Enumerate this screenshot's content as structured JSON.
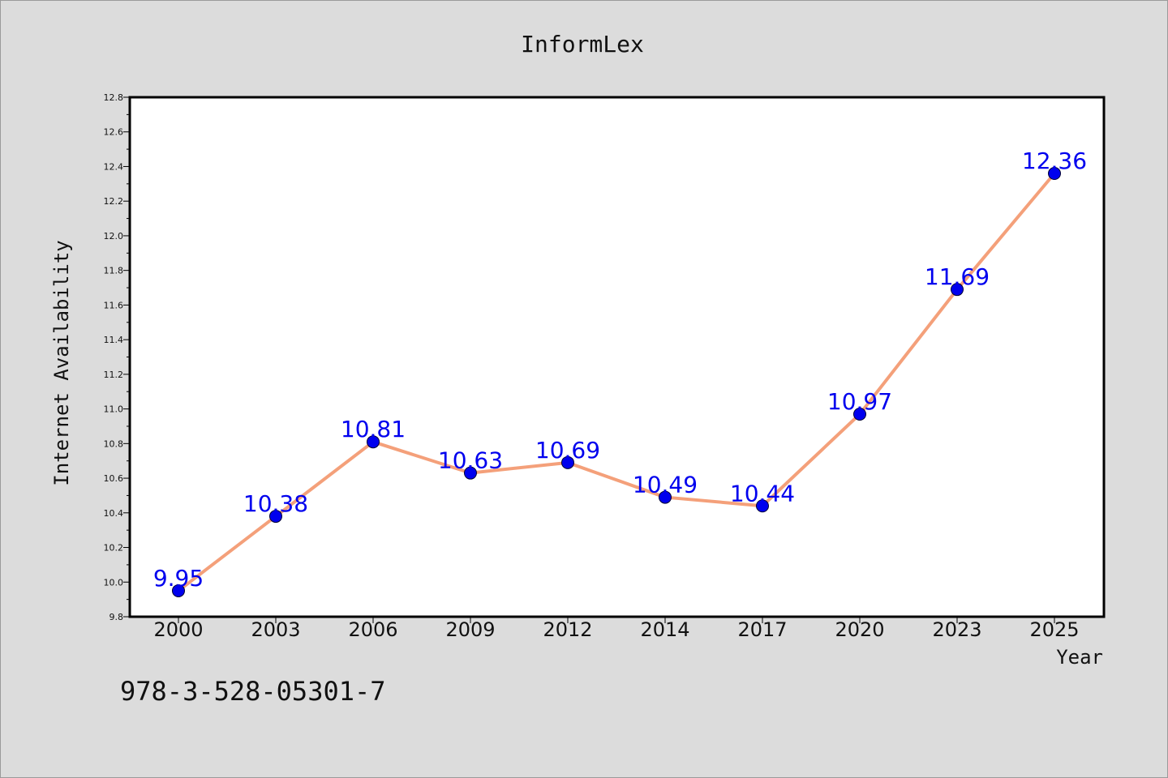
{
  "chart_data": {
    "type": "line",
    "title": "InformLex",
    "xlabel": "Year",
    "ylabel": "Internet Availability",
    "categories": [
      "2000",
      "2003",
      "2006",
      "2009",
      "2012",
      "2014",
      "2017",
      "2020",
      "2023",
      "2025"
    ],
    "series": [
      {
        "values": [
          9.95,
          10.38,
          10.81,
          10.63,
          10.69,
          10.49,
          10.44,
          10.97,
          11.69,
          12.36
        ],
        "data_labels": [
          "9.95",
          "10.38",
          "10.81",
          "10.63",
          "10.69",
          "10.49",
          "10.44",
          "10.97",
          "11.69",
          "12.36"
        ],
        "line_color": "#f4a07a",
        "marker_color": "#0000ee",
        "label_color": "#0000ee"
      }
    ],
    "ylim": [
      9.8,
      12.8
    ],
    "yticks": [
      "9.8",
      "10.0",
      "10.2",
      "10.4",
      "10.6",
      "10.8",
      "11.0",
      "11.2",
      "11.4",
      "11.6",
      "11.8",
      "12.0",
      "12.2",
      "12.4",
      "12.6",
      "12.8"
    ],
    "grid": false,
    "legend": "none"
  },
  "footer": {
    "isbn": "978-3-528-05301-7"
  },
  "colors": {
    "background": "#dcdcdc",
    "plot_area": "#ffffff",
    "axis": "#000000"
  }
}
